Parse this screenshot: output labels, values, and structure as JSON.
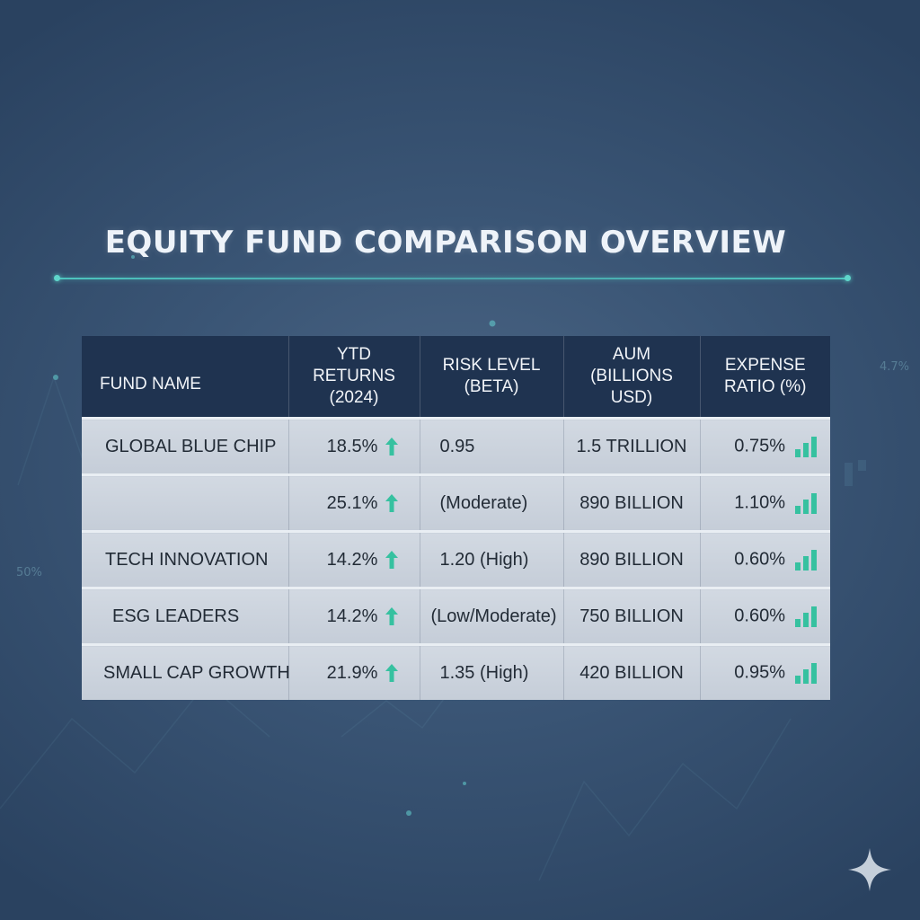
{
  "title": "EQUITY FUND COMPARISON OVERVIEW",
  "decor_labels": {
    "left": "50%",
    "right": "4.7%"
  },
  "colors": {
    "accent": "#4cc9b0",
    "header_bg": "#1f3350",
    "row_bg": "#c9d1db",
    "background": "#3a5575"
  },
  "chart_data": {
    "type": "table",
    "title": "EQUITY FUND COMPARISON OVERVIEW",
    "columns": [
      {
        "key": "fund",
        "label": "FUND NAME"
      },
      {
        "key": "ytd",
        "label": "YTD RETURNS (2024)"
      },
      {
        "key": "risk",
        "label": "RISK LEVEL (BETA)"
      },
      {
        "key": "aum",
        "label": "AUM (BILLIONS USD)"
      },
      {
        "key": "expense",
        "label": "EXPENSE RATIO (%)"
      }
    ],
    "rows": [
      {
        "fund": "GLOBAL BLUE CHIP",
        "ytd": "18.5%",
        "risk": "0.95",
        "aum": "1.5 TRILLION",
        "expense": "0.75%"
      },
      {
        "fund": "",
        "ytd": "25.1%",
        "risk": "(Moderate)",
        "aum": "890 BILLION",
        "expense": "1.10%"
      },
      {
        "fund": "TECH INNOVATION",
        "ytd": "14.2%",
        "risk": "1.20 (High)",
        "aum": "890 BILLION",
        "expense": "0.60%"
      },
      {
        "fund": "ESG LEADERS",
        "ytd": "14.2%",
        "risk": "(Low/Moderate)",
        "aum": "750 BILLION",
        "expense": "0.60%"
      },
      {
        "fund": "SMALL CAP GROWTH",
        "ytd": "21.9%",
        "risk": "1.35 (High)",
        "aum": "420 BILLION",
        "expense": "0.95%"
      }
    ],
    "icons": {
      "ytd": "up-arrow-icon",
      "expense": "bar-chart-icon"
    }
  }
}
